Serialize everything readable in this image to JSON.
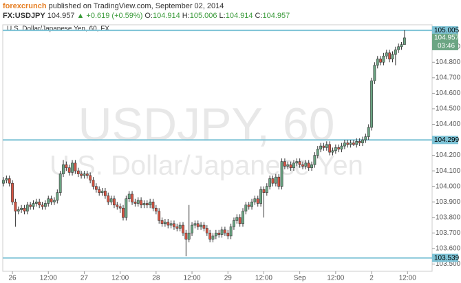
{
  "header": {
    "author": "forexcrunch",
    "published": "published on TradingView.com, September 02, 2014",
    "symbol": "FX:USDJPY",
    "price": "104.957",
    "arrow": "▲",
    "change": "+0.619 (+0.59%)",
    "ohlc": [
      {
        "label": "O:",
        "value": "104.914"
      },
      {
        "label": "H:",
        "value": "105.006"
      },
      {
        "label": "L:",
        "value": "104.914"
      },
      {
        "label": "C:",
        "value": "104.957"
      }
    ]
  },
  "chart_data": {
    "type": "candlestick",
    "title": "U.S. Dollar/Japanese Yen, 60, FX",
    "watermark": "USDJPY, 60",
    "watermark_sub": "U.S. Dollar/Japanese Yen",
    "up_color": "#6ba583",
    "down_color": "#d75442",
    "level_color": "#7ec3d6",
    "ylim": [
      103.453,
      105.041
    ],
    "yticks": [
      {
        "value": 103.5,
        "label": "103.500"
      },
      {
        "value": 103.6,
        "label": "103.600"
      },
      {
        "value": 103.7,
        "label": "103.700"
      },
      {
        "value": 103.8,
        "label": "103.800"
      },
      {
        "value": 103.9,
        "label": "103.900"
      },
      {
        "value": 104.0,
        "label": "104.000"
      },
      {
        "value": 104.1,
        "label": "104.100"
      },
      {
        "value": 104.2,
        "label": "104.200"
      },
      {
        "value": 104.4,
        "label": "104.400"
      },
      {
        "value": 104.5,
        "label": "104.500"
      },
      {
        "value": 104.6,
        "label": "104.600"
      },
      {
        "value": 104.7,
        "label": "104.700"
      },
      {
        "value": 104.8,
        "label": "104.800"
      },
      {
        "value": 104.9,
        "label": "104.900"
      }
    ],
    "xticks": [
      {
        "value": 3,
        "label": "26"
      },
      {
        "value": 15,
        "label": "12:00"
      },
      {
        "value": 27,
        "label": "27"
      },
      {
        "value": 39,
        "label": "12:00"
      },
      {
        "value": 51,
        "label": "28"
      },
      {
        "value": 63,
        "label": "12:00"
      },
      {
        "value": 75,
        "label": "29"
      },
      {
        "value": 87,
        "label": "12:00"
      },
      {
        "value": 99,
        "label": "Sep"
      },
      {
        "value": 111,
        "label": "12:00"
      },
      {
        "value": 123,
        "label": "2"
      },
      {
        "value": 135,
        "label": "12:00"
      }
    ],
    "levels": [
      105.005,
      104.299,
      103.539
    ],
    "countdown": "03:46",
    "candles": [
      [
        104.02,
        104.06,
        104.0,
        104.04
      ],
      [
        104.04,
        104.07,
        104.02,
        104.05
      ],
      [
        104.05,
        104.07,
        104.0,
        104.02
      ],
      [
        104.02,
        104.04,
        103.88,
        103.9
      ],
      [
        103.9,
        103.92,
        103.74,
        103.84
      ],
      [
        103.84,
        103.87,
        103.82,
        103.85
      ],
      [
        103.85,
        103.88,
        103.83,
        103.86
      ],
      [
        103.86,
        103.88,
        103.82,
        103.84
      ],
      [
        103.84,
        103.9,
        103.82,
        103.88
      ],
      [
        103.88,
        103.9,
        103.85,
        103.87
      ],
      [
        103.87,
        103.91,
        103.85,
        103.89
      ],
      [
        103.89,
        103.92,
        103.87,
        103.9
      ],
      [
        103.9,
        103.92,
        103.86,
        103.88
      ],
      [
        103.88,
        103.9,
        103.85,
        103.87
      ],
      [
        103.87,
        103.91,
        103.85,
        103.89
      ],
      [
        103.89,
        103.94,
        103.87,
        103.92
      ],
      [
        103.92,
        103.94,
        103.88,
        103.9
      ],
      [
        103.9,
        103.93,
        103.88,
        103.91
      ],
      [
        103.91,
        103.98,
        103.89,
        103.96
      ],
      [
        103.96,
        104.1,
        103.94,
        104.08
      ],
      [
        104.08,
        104.17,
        104.06,
        104.14
      ],
      [
        104.14,
        104.16,
        104.1,
        104.12
      ],
      [
        104.12,
        104.14,
        104.07,
        104.09
      ],
      [
        104.09,
        104.17,
        104.07,
        104.15
      ],
      [
        104.15,
        104.17,
        104.08,
        104.1
      ],
      [
        104.1,
        104.12,
        104.06,
        104.08
      ],
      [
        104.08,
        104.1,
        104.05,
        104.07
      ],
      [
        104.07,
        104.1,
        104.05,
        104.08
      ],
      [
        104.08,
        104.1,
        104.05,
        104.07
      ],
      [
        104.07,
        104.09,
        104.02,
        104.04
      ],
      [
        104.04,
        104.06,
        103.98,
        104.0
      ],
      [
        104.0,
        104.02,
        103.96,
        103.98
      ],
      [
        103.98,
        104.0,
        103.94,
        103.96
      ],
      [
        103.96,
        103.99,
        103.94,
        103.97
      ],
      [
        103.97,
        103.99,
        103.92,
        103.94
      ],
      [
        103.94,
        103.96,
        103.88,
        103.9
      ],
      [
        103.9,
        103.94,
        103.88,
        103.92
      ],
      [
        103.92,
        103.94,
        103.86,
        103.88
      ],
      [
        103.88,
        103.9,
        103.85,
        103.87
      ],
      [
        103.87,
        103.89,
        103.83,
        103.86
      ],
      [
        103.86,
        103.88,
        103.78,
        103.8
      ],
      [
        103.8,
        103.94,
        103.78,
        103.92
      ],
      [
        103.92,
        103.97,
        103.9,
        103.95
      ],
      [
        103.95,
        103.97,
        103.88,
        103.9
      ],
      [
        103.9,
        103.92,
        103.87,
        103.89
      ],
      [
        103.89,
        103.93,
        103.87,
        103.91
      ],
      [
        103.91,
        103.93,
        103.86,
        103.88
      ],
      [
        103.88,
        103.91,
        103.86,
        103.89
      ],
      [
        103.89,
        103.91,
        103.86,
        103.88
      ],
      [
        103.88,
        103.92,
        103.86,
        103.9
      ],
      [
        103.9,
        103.92,
        103.84,
        103.86
      ],
      [
        103.86,
        103.88,
        103.82,
        103.84
      ],
      [
        103.84,
        103.86,
        103.76,
        103.78
      ],
      [
        103.78,
        103.8,
        103.74,
        103.76
      ],
      [
        103.76,
        103.79,
        103.74,
        103.77
      ],
      [
        103.77,
        103.79,
        103.73,
        103.75
      ],
      [
        103.75,
        103.78,
        103.73,
        103.76
      ],
      [
        103.76,
        103.78,
        103.72,
        103.74
      ],
      [
        103.74,
        103.76,
        103.71,
        103.73
      ],
      [
        103.73,
        103.77,
        103.71,
        103.75
      ],
      [
        103.75,
        103.77,
        103.68,
        103.7
      ],
      [
        103.7,
        103.72,
        103.55,
        103.66
      ],
      [
        103.66,
        103.88,
        103.64,
        103.7
      ],
      [
        103.7,
        103.77,
        103.68,
        103.75
      ],
      [
        103.75,
        103.78,
        103.73,
        103.76
      ],
      [
        103.76,
        103.78,
        103.72,
        103.74
      ],
      [
        103.74,
        103.77,
        103.72,
        103.75
      ],
      [
        103.75,
        103.77,
        103.71,
        103.73
      ],
      [
        103.73,
        103.75,
        103.68,
        103.7
      ],
      [
        103.7,
        103.72,
        103.64,
        103.66
      ],
      [
        103.66,
        103.7,
        103.64,
        103.68
      ],
      [
        103.68,
        103.72,
        103.66,
        103.7
      ],
      [
        103.7,
        103.72,
        103.67,
        103.69
      ],
      [
        103.69,
        103.74,
        103.67,
        103.72
      ],
      [
        103.72,
        103.74,
        103.68,
        103.7
      ],
      [
        103.7,
        103.72,
        103.66,
        103.68
      ],
      [
        103.68,
        103.76,
        103.66,
        103.74
      ],
      [
        103.74,
        103.8,
        103.72,
        103.78
      ],
      [
        103.78,
        103.82,
        103.76,
        103.8
      ],
      [
        103.8,
        103.82,
        103.74,
        103.76
      ],
      [
        103.76,
        103.86,
        103.74,
        103.84
      ],
      [
        103.84,
        103.9,
        103.82,
        103.88
      ],
      [
        103.88,
        103.9,
        103.85,
        103.87
      ],
      [
        103.87,
        103.92,
        103.85,
        103.9
      ],
      [
        103.9,
        103.94,
        103.88,
        103.92
      ],
      [
        103.92,
        103.94,
        103.87,
        103.89
      ],
      [
        103.89,
        104.0,
        103.87,
        103.98
      ],
      [
        103.98,
        104.0,
        103.8,
        103.96
      ],
      [
        103.96,
        104.02,
        103.94,
        104.0
      ],
      [
        104.0,
        104.07,
        103.98,
        104.05
      ],
      [
        104.05,
        104.07,
        104.0,
        104.02
      ],
      [
        104.02,
        104.08,
        104.0,
        104.06
      ],
      [
        104.06,
        104.08,
        103.98,
        104.0
      ],
      [
        104.0,
        104.18,
        103.98,
        104.16
      ],
      [
        104.16,
        104.18,
        104.11,
        104.13
      ],
      [
        104.13,
        104.16,
        104.11,
        104.14
      ],
      [
        104.14,
        104.16,
        104.1,
        104.12
      ],
      [
        104.12,
        104.17,
        104.1,
        104.15
      ],
      [
        104.15,
        104.18,
        104.13,
        104.16
      ],
      [
        104.16,
        104.18,
        104.12,
        104.14
      ],
      [
        104.14,
        104.16,
        104.11,
        104.13
      ],
      [
        104.13,
        104.17,
        104.11,
        104.15
      ],
      [
        104.15,
        104.17,
        104.1,
        104.12
      ],
      [
        104.12,
        104.16,
        104.1,
        104.14
      ],
      [
        104.14,
        104.22,
        104.12,
        104.2
      ],
      [
        104.2,
        104.26,
        104.18,
        104.24
      ],
      [
        104.24,
        104.28,
        104.22,
        104.26
      ],
      [
        104.26,
        104.28,
        104.23,
        104.25
      ],
      [
        104.25,
        104.29,
        104.23,
        104.27
      ],
      [
        104.27,
        104.29,
        104.2,
        104.22
      ],
      [
        104.22,
        104.25,
        104.2,
        104.23
      ],
      [
        104.23,
        104.27,
        104.21,
        104.25
      ],
      [
        104.25,
        104.27,
        104.22,
        104.24
      ],
      [
        104.24,
        104.28,
        104.22,
        104.26
      ],
      [
        104.26,
        104.3,
        104.24,
        104.28
      ],
      [
        104.28,
        104.3,
        104.25,
        104.27
      ],
      [
        104.27,
        104.3,
        104.25,
        104.28
      ],
      [
        104.28,
        104.3,
        104.26,
        104.27
      ],
      [
        104.27,
        104.31,
        104.25,
        104.29
      ],
      [
        104.29,
        104.31,
        104.26,
        104.28
      ],
      [
        104.28,
        104.32,
        104.26,
        104.3
      ],
      [
        104.3,
        104.34,
        104.28,
        104.32
      ],
      [
        104.32,
        104.4,
        104.3,
        104.38
      ],
      [
        104.38,
        104.7,
        104.36,
        104.68
      ],
      [
        104.68,
        104.8,
        104.66,
        104.78
      ],
      [
        104.78,
        104.84,
        104.76,
        104.82
      ],
      [
        104.82,
        104.84,
        104.78,
        104.8
      ],
      [
        104.8,
        104.86,
        104.78,
        104.84
      ],
      [
        104.84,
        104.88,
        104.82,
        104.86
      ],
      [
        104.86,
        104.88,
        104.8,
        104.82
      ],
      [
        104.82,
        104.87,
        104.8,
        104.85
      ],
      [
        104.85,
        104.9,
        104.78,
        104.88
      ],
      [
        104.88,
        104.92,
        104.86,
        104.9
      ],
      [
        104.9,
        104.93,
        104.88,
        104.914
      ],
      [
        104.914,
        105.006,
        104.914,
        104.957
      ]
    ]
  }
}
